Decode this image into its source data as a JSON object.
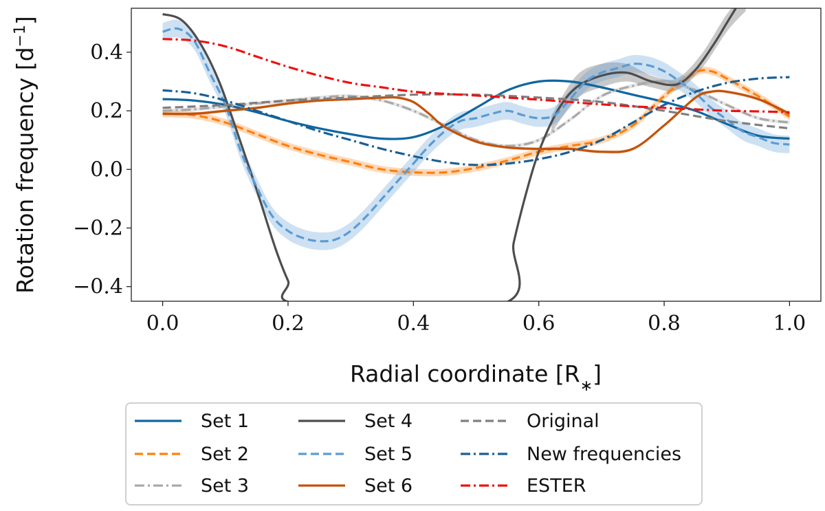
{
  "chart_data": {
    "type": "line",
    "xlabel": "Radial coordinate [R",
    "xlabel_sub": "∗",
    "xlabel_close": "]",
    "ylabel": "Rotation frequency [d",
    "ylabel_sup": "−1",
    "ylabel_close": "]",
    "xlim": [
      -0.05,
      1.05
    ],
    "ylim": [
      -0.45,
      0.55
    ],
    "xticks": [
      0.0,
      0.2,
      0.4,
      0.6,
      0.8,
      1.0
    ],
    "xtick_labels": [
      "0.0",
      "0.2",
      "0.4",
      "0.6",
      "0.8",
      "1.0"
    ],
    "yticks": [
      -0.4,
      -0.2,
      0.0,
      0.2,
      0.4
    ],
    "ytick_labels": [
      "−0.4",
      "−0.2",
      "0.0",
      "0.2",
      "0.4"
    ],
    "legend_position": "below",
    "series": [
      {
        "name": "Set 1",
        "color": "#0f67a0",
        "dash": "solid",
        "band": 0.004,
        "x": [
          0,
          0.05,
          0.1,
          0.15,
          0.2,
          0.25,
          0.3,
          0.35,
          0.4,
          0.45,
          0.5,
          0.55,
          0.6,
          0.65,
          0.7,
          0.75,
          0.8,
          0.85,
          0.9,
          0.95,
          1.0
        ],
        "y": [
          0.24,
          0.235,
          0.22,
          0.195,
          0.165,
          0.14,
          0.12,
          0.105,
          0.11,
          0.15,
          0.21,
          0.27,
          0.3,
          0.3,
          0.28,
          0.255,
          0.23,
          0.2,
          0.155,
          0.115,
          0.105
        ]
      },
      {
        "name": "Set 2",
        "color": "#ff7f0e",
        "dash": "dashed",
        "band": 0.012,
        "x": [
          0,
          0.05,
          0.1,
          0.15,
          0.2,
          0.25,
          0.3,
          0.35,
          0.4,
          0.45,
          0.5,
          0.55,
          0.6,
          0.65,
          0.7,
          0.75,
          0.8,
          0.85,
          0.875,
          0.9,
          0.95,
          1.0
        ],
        "y": [
          0.19,
          0.185,
          0.16,
          0.12,
          0.08,
          0.05,
          0.025,
          0.0,
          -0.01,
          -0.01,
          0.005,
          0.03,
          0.06,
          0.08,
          0.1,
          0.15,
          0.25,
          0.33,
          0.335,
          0.31,
          0.25,
          0.18
        ]
      },
      {
        "name": "Set 3",
        "color": "#a9a9a9",
        "dash": "dashdot",
        "band": 0.006,
        "x": [
          0,
          0.05,
          0.1,
          0.15,
          0.2,
          0.25,
          0.3,
          0.35,
          0.4,
          0.45,
          0.5,
          0.55,
          0.6,
          0.65,
          0.7,
          0.75,
          0.8,
          0.85,
          0.9,
          0.95,
          1.0
        ],
        "y": [
          0.2,
          0.205,
          0.215,
          0.225,
          0.235,
          0.245,
          0.25,
          0.235,
          0.2,
          0.15,
          0.1,
          0.08,
          0.1,
          0.17,
          0.25,
          0.285,
          0.3,
          0.27,
          0.22,
          0.175,
          0.16
        ]
      },
      {
        "name": "Set 4",
        "color": "#4d4d4d",
        "dash": "solid",
        "band": 0.006,
        "x": [
          0,
          0.03,
          0.06,
          0.09,
          0.12,
          0.15,
          0.18,
          0.2,
          0.22,
          0.54,
          0.56,
          0.58,
          0.6,
          0.63,
          0.66,
          0.7,
          0.74,
          0.78,
          0.82,
          0.85,
          0.88,
          0.9,
          0.92
        ],
        "y": [
          0.53,
          0.51,
          0.43,
          0.3,
          0.12,
          -0.07,
          -0.27,
          -0.38,
          -0.46,
          -0.46,
          -0.25,
          -0.08,
          0.06,
          0.2,
          0.28,
          0.32,
          0.33,
          0.3,
          0.29,
          0.34,
          0.43,
          0.5,
          0.57
        ],
        "band_x": [
          0.62,
          0.66,
          0.7,
          0.74,
          0.78,
          0.82,
          0.86,
          0.9,
          0.93
        ],
        "band_w": [
          0.03,
          0.04,
          0.04,
          0.03,
          0.02,
          0.02,
          0.025,
          0.03,
          0.03
        ]
      },
      {
        "name": "Set 5",
        "color": "#5b9bd5",
        "dash": "dashed",
        "band": 0.03,
        "x": [
          0,
          0.025,
          0.05,
          0.075,
          0.1,
          0.125,
          0.15,
          0.175,
          0.2,
          0.225,
          0.25,
          0.275,
          0.3,
          0.325,
          0.35,
          0.375,
          0.4,
          0.425,
          0.45,
          0.475,
          0.5,
          0.525,
          0.55,
          0.575,
          0.6,
          0.625,
          0.65,
          0.675,
          0.7,
          0.725,
          0.75,
          0.775,
          0.8,
          0.825,
          0.85,
          0.875,
          0.9,
          0.925,
          0.95,
          0.975,
          1.0
        ],
        "y": [
          0.47,
          0.48,
          0.44,
          0.33,
          0.22,
          0.06,
          -0.06,
          -0.16,
          -0.21,
          -0.235,
          -0.245,
          -0.24,
          -0.21,
          -0.16,
          -0.1,
          -0.04,
          0.02,
          0.08,
          0.13,
          0.165,
          0.175,
          0.19,
          0.2,
          0.185,
          0.175,
          0.185,
          0.24,
          0.3,
          0.33,
          0.345,
          0.36,
          0.355,
          0.335,
          0.3,
          0.26,
          0.21,
          0.17,
          0.13,
          0.11,
          0.09,
          0.085
        ]
      },
      {
        "name": "Set 6",
        "color": "#c4520a",
        "dash": "solid",
        "band": 0.005,
        "x": [
          0,
          0.05,
          0.1,
          0.15,
          0.2,
          0.25,
          0.3,
          0.35,
          0.375,
          0.4,
          0.425,
          0.45,
          0.5,
          0.55,
          0.6,
          0.65,
          0.7,
          0.75,
          0.8,
          0.85,
          0.875,
          0.9,
          0.95,
          1.0
        ],
        "y": [
          0.19,
          0.19,
          0.2,
          0.21,
          0.225,
          0.235,
          0.24,
          0.245,
          0.245,
          0.23,
          0.19,
          0.145,
          0.095,
          0.075,
          0.07,
          0.07,
          0.06,
          0.07,
          0.15,
          0.245,
          0.265,
          0.265,
          0.24,
          0.19
        ]
      },
      {
        "name": "Original",
        "color": "#7f7f7f",
        "dash": "dashed",
        "band": 0,
        "x": [
          0,
          0.1,
          0.2,
          0.3,
          0.4,
          0.5,
          0.6,
          0.7,
          0.8,
          0.9,
          1.0
        ],
        "y": [
          0.21,
          0.22,
          0.235,
          0.245,
          0.255,
          0.255,
          0.245,
          0.23,
          0.2,
          0.165,
          0.14
        ]
      },
      {
        "name": "New frequencies",
        "color": "#1a5f94",
        "dash": "dashdot",
        "band": 0,
        "x": [
          0,
          0.05,
          0.1,
          0.15,
          0.2,
          0.25,
          0.3,
          0.35,
          0.4,
          0.45,
          0.5,
          0.55,
          0.6,
          0.65,
          0.7,
          0.75,
          0.8,
          0.85,
          0.9,
          0.95,
          1.0
        ],
        "y": [
          0.27,
          0.26,
          0.235,
          0.2,
          0.165,
          0.13,
          0.1,
          0.07,
          0.045,
          0.025,
          0.015,
          0.02,
          0.035,
          0.06,
          0.1,
          0.16,
          0.22,
          0.265,
          0.295,
          0.31,
          0.315
        ]
      },
      {
        "name": "ESTER",
        "color": "#ee1111",
        "dash": "dashdot",
        "band": 0,
        "x": [
          0,
          0.05,
          0.1,
          0.15,
          0.2,
          0.25,
          0.3,
          0.35,
          0.4,
          0.45,
          0.5,
          0.55,
          0.6,
          0.65,
          0.7,
          0.75,
          0.8,
          0.85,
          0.9,
          0.95,
          1.0
        ],
        "y": [
          0.445,
          0.44,
          0.42,
          0.385,
          0.35,
          0.32,
          0.295,
          0.28,
          0.265,
          0.258,
          0.252,
          0.245,
          0.238,
          0.23,
          0.222,
          0.215,
          0.21,
          0.205,
          0.2,
          0.198,
          0.195
        ]
      }
    ],
    "legend_order": [
      0,
      1,
      2,
      3,
      4,
      5,
      6,
      7,
      8
    ]
  }
}
